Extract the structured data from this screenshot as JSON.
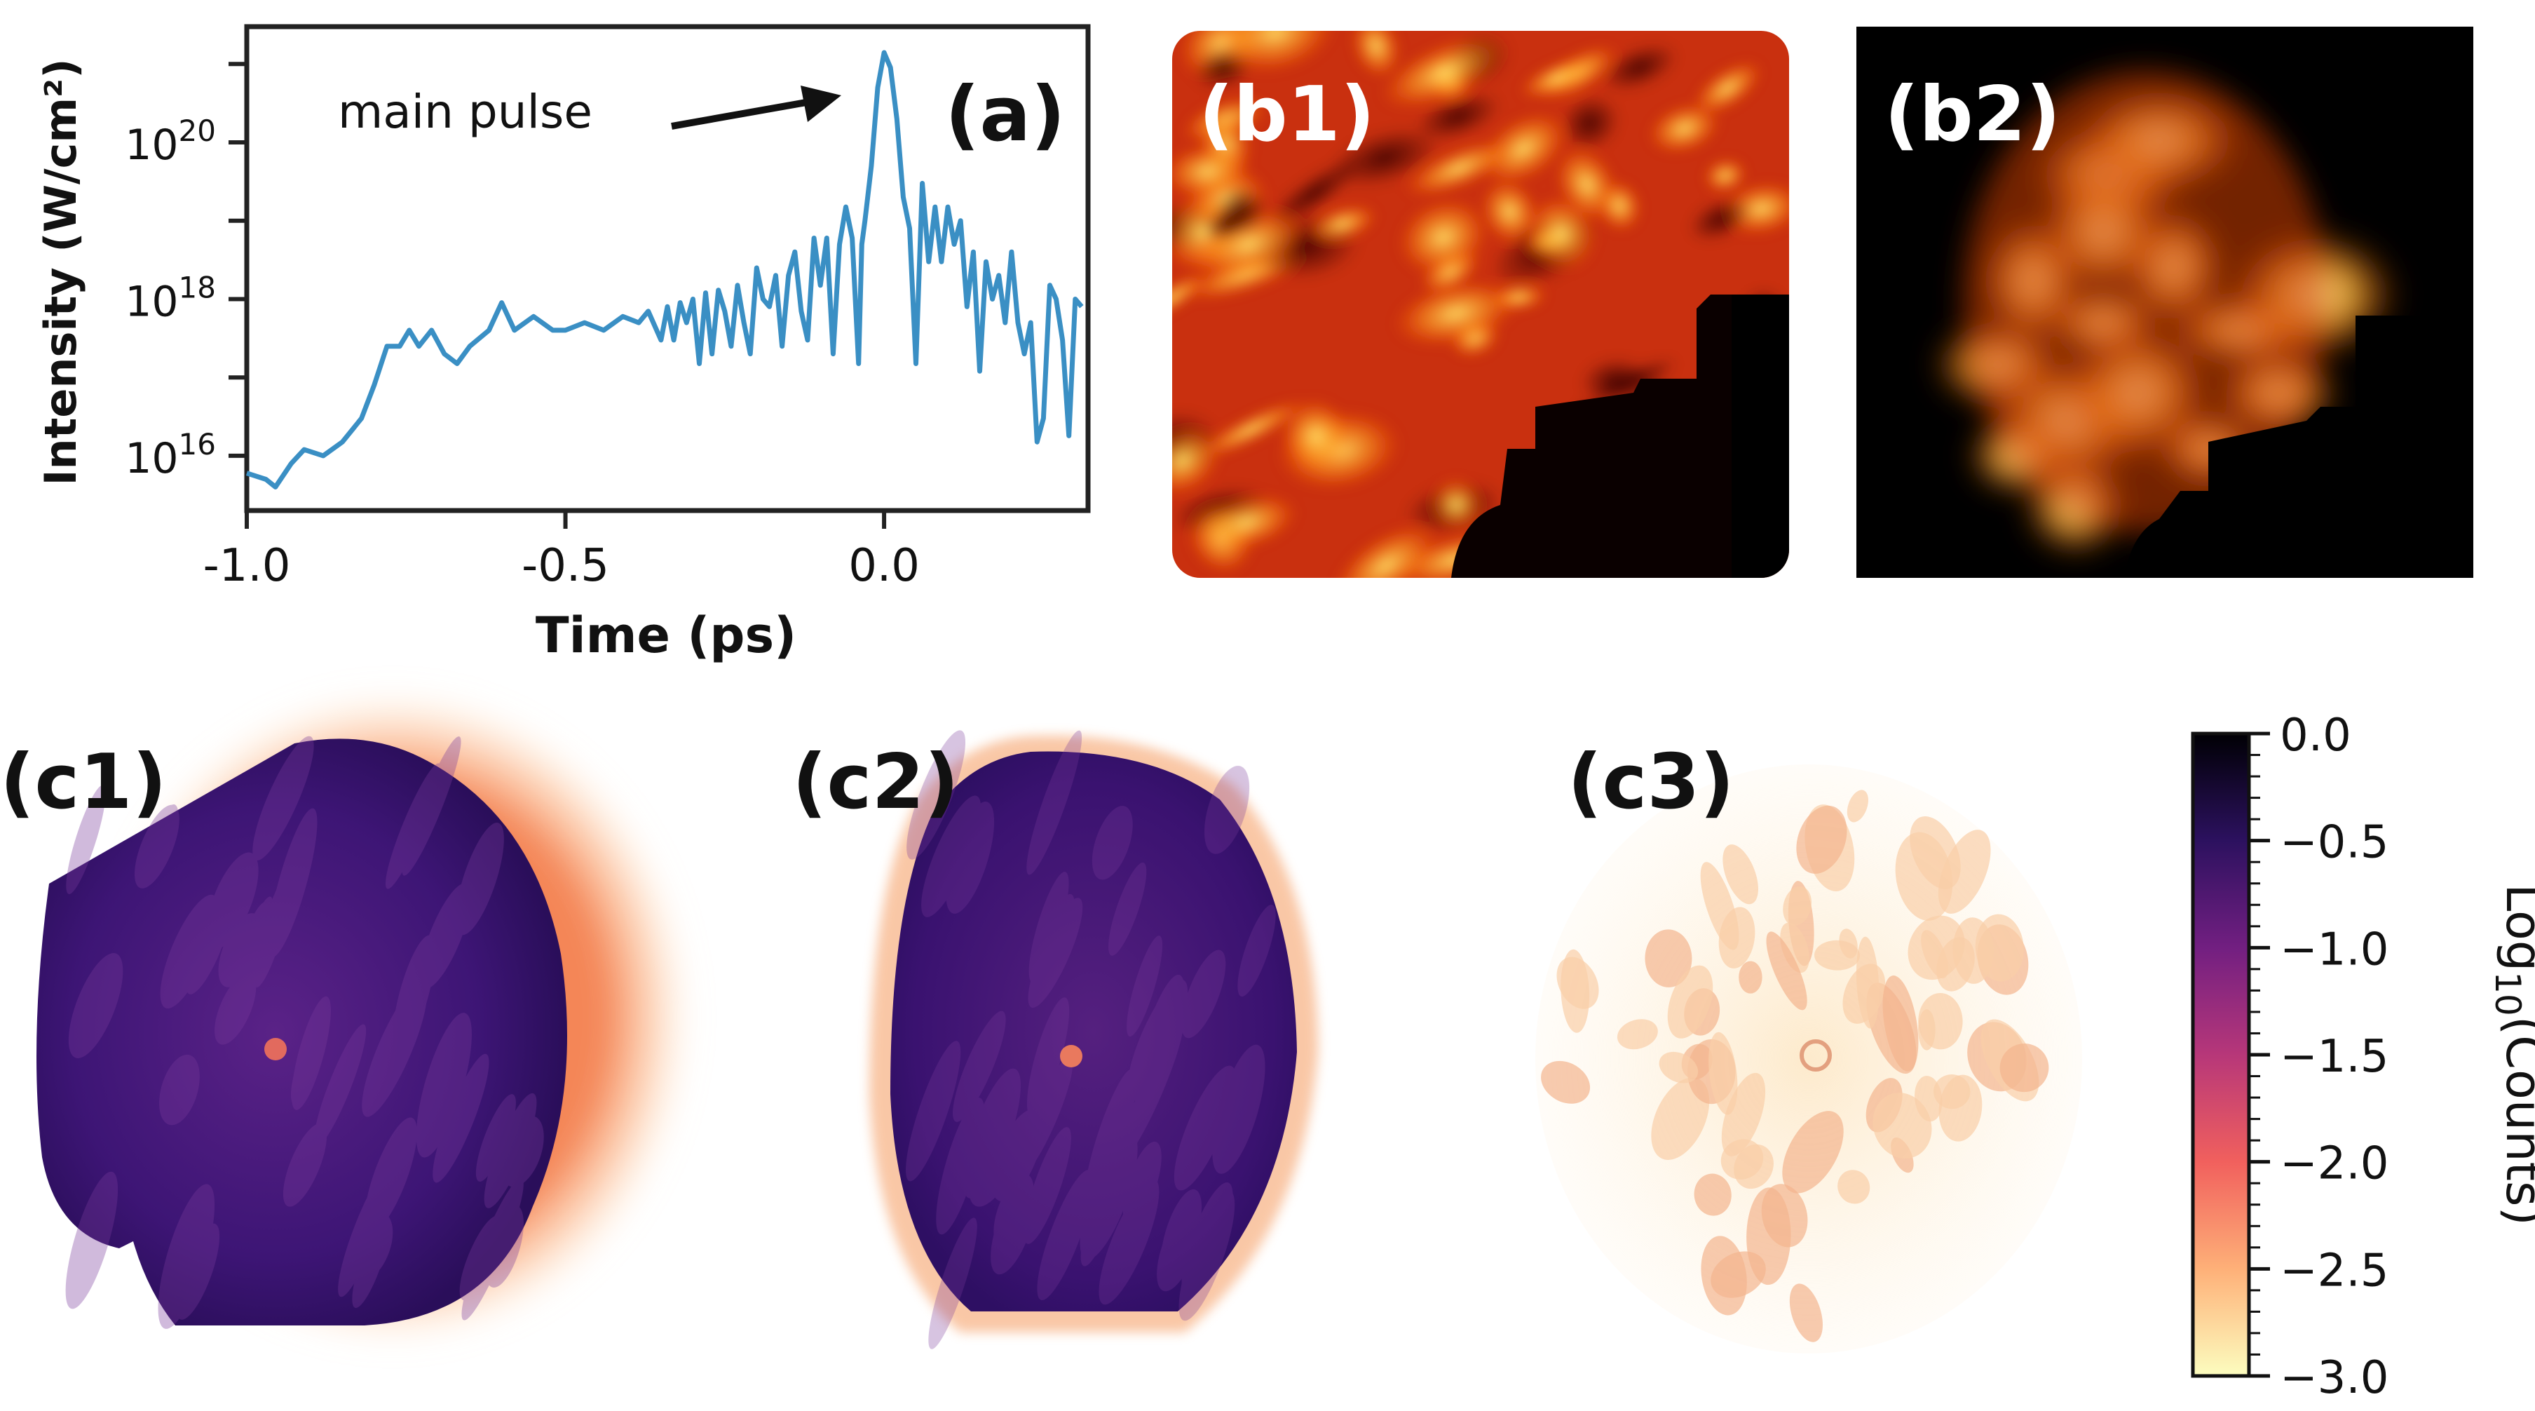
{
  "panel_a": {
    "label": "(a)",
    "annotation": "main pulse",
    "ylabel": "Intensity (W/cm²)",
    "xlabel": "Time (ps)",
    "xticks": [
      "-1.0",
      "-0.5",
      "0.0"
    ],
    "yticks": [
      {
        "base": "10",
        "exp": "16"
      },
      {
        "base": "10",
        "exp": "18"
      },
      {
        "base": "10",
        "exp": "20"
      }
    ],
    "line_color": "#3a8fc4"
  },
  "panel_b1": {
    "label": "(b1)"
  },
  "panel_b2": {
    "label": "(b2)"
  },
  "panel_c1": {
    "label": "(c1)"
  },
  "panel_c2": {
    "label": "(c2)"
  },
  "panel_c3": {
    "label": "(c3)"
  },
  "colorbar": {
    "label_prefix": "Log",
    "label_sub": "10",
    "label_suffix": "(Counts)",
    "ticks": [
      "0.0",
      "−0.5",
      "−1.0",
      "−1.5",
      "−2.0",
      "−2.5",
      "−3.0"
    ],
    "colors": [
      "#000004",
      "#2c115f",
      "#721f81",
      "#b73779",
      "#f1605d",
      "#feb078",
      "#fcfdbf"
    ]
  },
  "chart_data": {
    "type": "line",
    "xlabel": "Time (ps)",
    "ylabel": "Intensity (W/cm²)",
    "yscale": "log",
    "xlim": [
      -1.0,
      0.32
    ],
    "ylim": [
      2000000000000000.0,
      3e+21
    ],
    "annotations": [
      {
        "text": "main pulse",
        "x": 0.0,
        "y": 1e+21
      }
    ],
    "series": [
      {
        "x": [
          -1.0,
          -0.97,
          -0.955,
          -0.93,
          -0.91,
          -0.88,
          -0.85,
          -0.82,
          -0.8,
          -0.78,
          -0.76,
          -0.745,
          -0.73,
          -0.71,
          -0.69,
          -0.67,
          -0.65,
          -0.62,
          -0.6,
          -0.58,
          -0.55,
          -0.52,
          -0.5,
          -0.47,
          -0.44,
          -0.41,
          -0.385,
          -0.37,
          -0.35,
          -0.34,
          -0.33,
          -0.32,
          -0.31,
          -0.3,
          -0.29,
          -0.28,
          -0.27,
          -0.26,
          -0.25,
          -0.24,
          -0.23,
          -0.22,
          -0.21,
          -0.2,
          -0.19,
          -0.18,
          -0.17,
          -0.16,
          -0.15,
          -0.14,
          -0.13,
          -0.12,
          -0.11,
          -0.1,
          -0.09,
          -0.08,
          -0.07,
          -0.06,
          -0.05,
          -0.04,
          -0.035,
          -0.03,
          -0.02,
          -0.01,
          0.0,
          0.01,
          0.02,
          0.03,
          0.04,
          0.05,
          0.06,
          0.07,
          0.08,
          0.09,
          0.1,
          0.11,
          0.12,
          0.13,
          0.14,
          0.15,
          0.16,
          0.17,
          0.18,
          0.19,
          0.2,
          0.21,
          0.22,
          0.23,
          0.24,
          0.25,
          0.26,
          0.27,
          0.28,
          0.29,
          0.3,
          0.31
        ],
        "y": [
          6000000000000000.0,
          5000000000000000.0,
          4000000000000000.0,
          8000000000000000.0,
          1.2e+16,
          1e+16,
          1.5e+16,
          3e+16,
          8e+16,
          2.5e+17,
          2.5e+17,
          4e+17,
          2.5e+17,
          4e+17,
          2e+17,
          1.5e+17,
          2.5e+17,
          4e+17,
          9e+17,
          4e+17,
          6e+17,
          4e+17,
          4e+17,
          5e+17,
          4e+17,
          6e+17,
          5e+17,
          7e+17,
          3e+17,
          8e+17,
          3e+17,
          9e+17,
          5e+17,
          1e+18,
          1.5e+17,
          1.2e+18,
          2e+17,
          1.3e+18,
          7e+17,
          2.5e+17,
          1.5e+18,
          5e+17,
          2e+17,
          2.5e+18,
          1e+18,
          8e+17,
          2e+18,
          2.5e+17,
          2e+18,
          4e+18,
          7e+17,
          3e+17,
          6e+18,
          1.5e+18,
          6e+18,
          2e+17,
          5e+18,
          1.5e+19,
          6e+18,
          1.5e+17,
          5e+18,
          1e+19,
          5e+19,
          5e+20,
          1.4e+21,
          9e+20,
          2e+20,
          2e+19,
          8e+18,
          1.5e+17,
          3e+19,
          3e+18,
          1.5e+19,
          3e+18,
          1.5e+19,
          5e+18,
          1e+19,
          8e+17,
          4e+18,
          1.2e+17,
          3e+18,
          1e+18,
          2e+18,
          5e+17,
          4e+18,
          5e+17,
          2e+17,
          5e+17,
          1.5e+16,
          3e+16,
          1.5e+18,
          1e+18,
          3e+17,
          1.8e+16,
          1e+18,
          8e+17
        ]
      }
    ]
  }
}
